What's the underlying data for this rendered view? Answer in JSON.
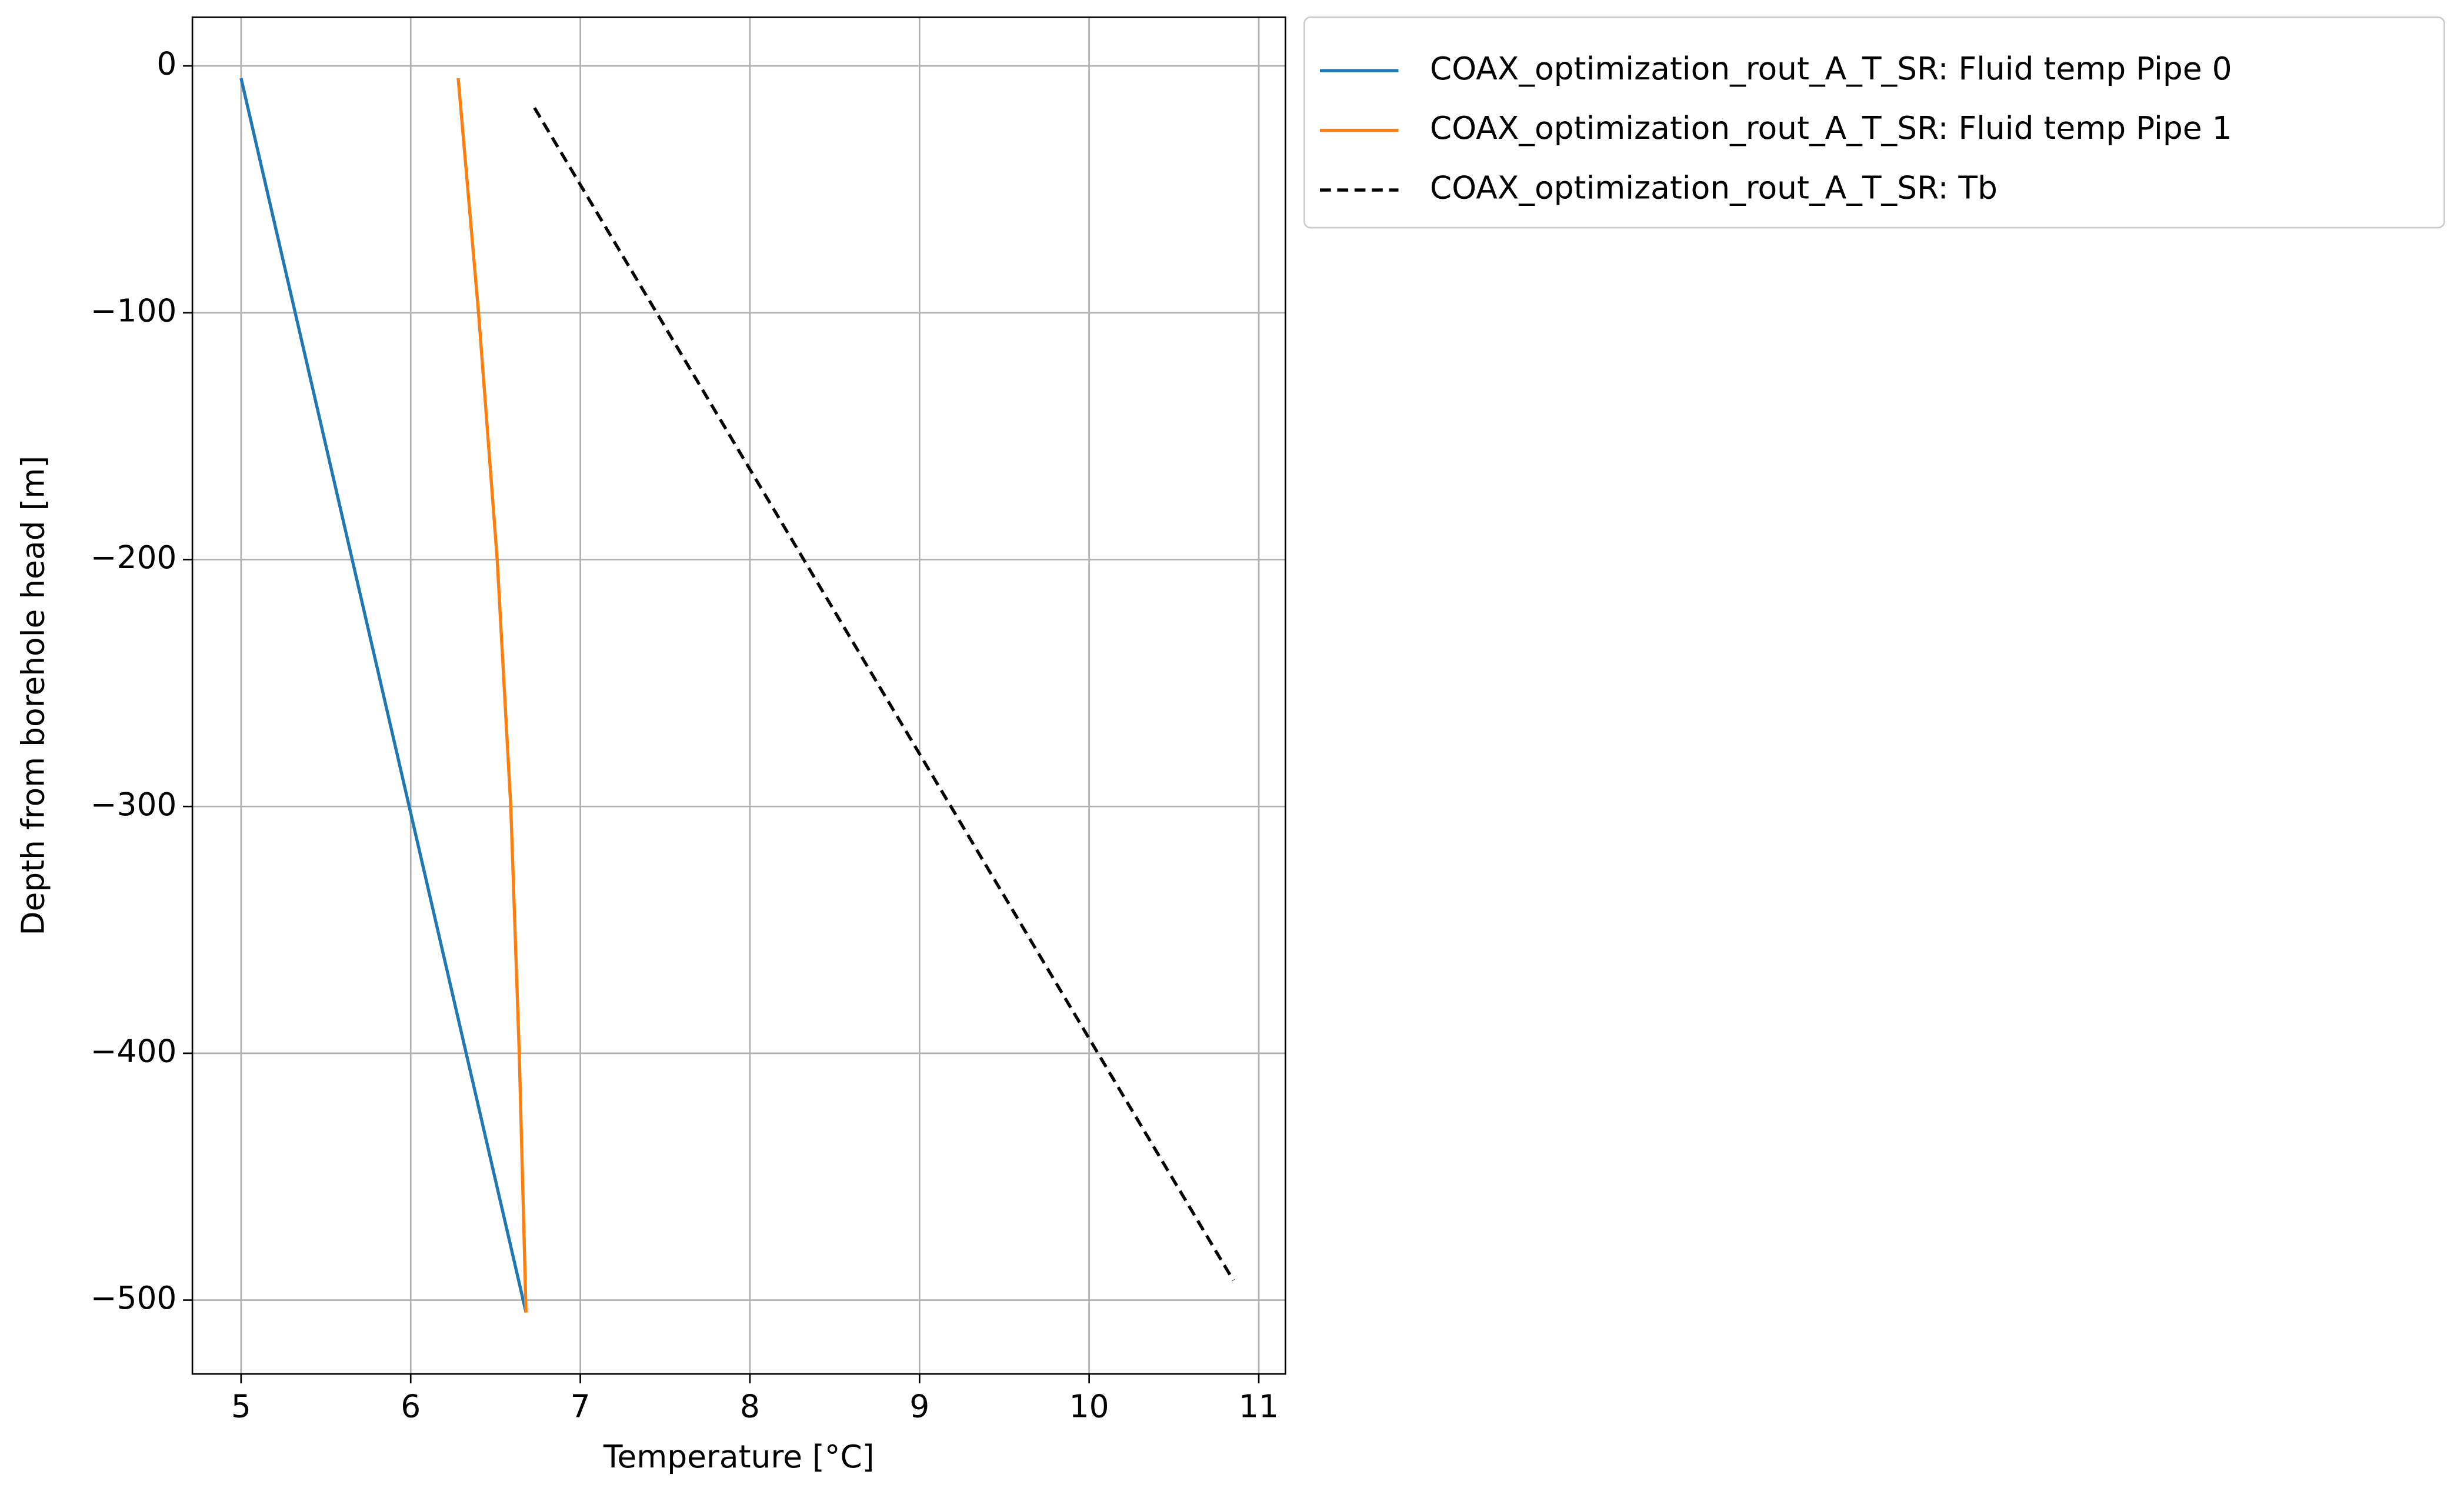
{
  "chart_data": {
    "type": "line",
    "xlabel": "Temperature [°C]",
    "ylabel": "Depth from borehole head [m]",
    "xlim": [
      4.713,
      11.157
    ],
    "ylim": [
      -529.9,
      19.7
    ],
    "xticks": [
      5,
      6,
      7,
      8,
      9,
      10,
      11
    ],
    "yticks": [
      0,
      {
        "value": -100,
        "label": "−100"
      },
      {
        "value": -200,
        "label": "−200"
      },
      {
        "value": -300,
        "label": "−300"
      },
      {
        "value": -400,
        "label": "−400"
      },
      {
        "value": -500,
        "label": "−500"
      }
    ],
    "grid": true,
    "legend": "outside upper right",
    "series": [
      {
        "name": "COAX_optimization_rout_A_T_SR: Fluid temp Pipe 0",
        "color": "#1f77b4",
        "dash": "solid",
        "x": [
          5.0,
          5.84,
          6.68
        ],
        "y": [
          -5,
          -255,
          -505
        ]
      },
      {
        "name": "COAX_optimization_rout_A_T_SR: Fluid temp Pipe 1",
        "color": "#ff7f0e",
        "dash": "solid",
        "x": [
          6.28,
          6.4,
          6.51,
          6.59,
          6.64,
          6.68
        ],
        "y": [
          -5,
          -100,
          -200,
          -300,
          -400,
          -505
        ]
      },
      {
        "name": "COAX_optimization_rout_A_T_SR: Tb",
        "color": "#000000",
        "dash": "dashed",
        "x": [
          6.73,
          10.85
        ],
        "y": [
          -17,
          -492
        ]
      }
    ]
  }
}
